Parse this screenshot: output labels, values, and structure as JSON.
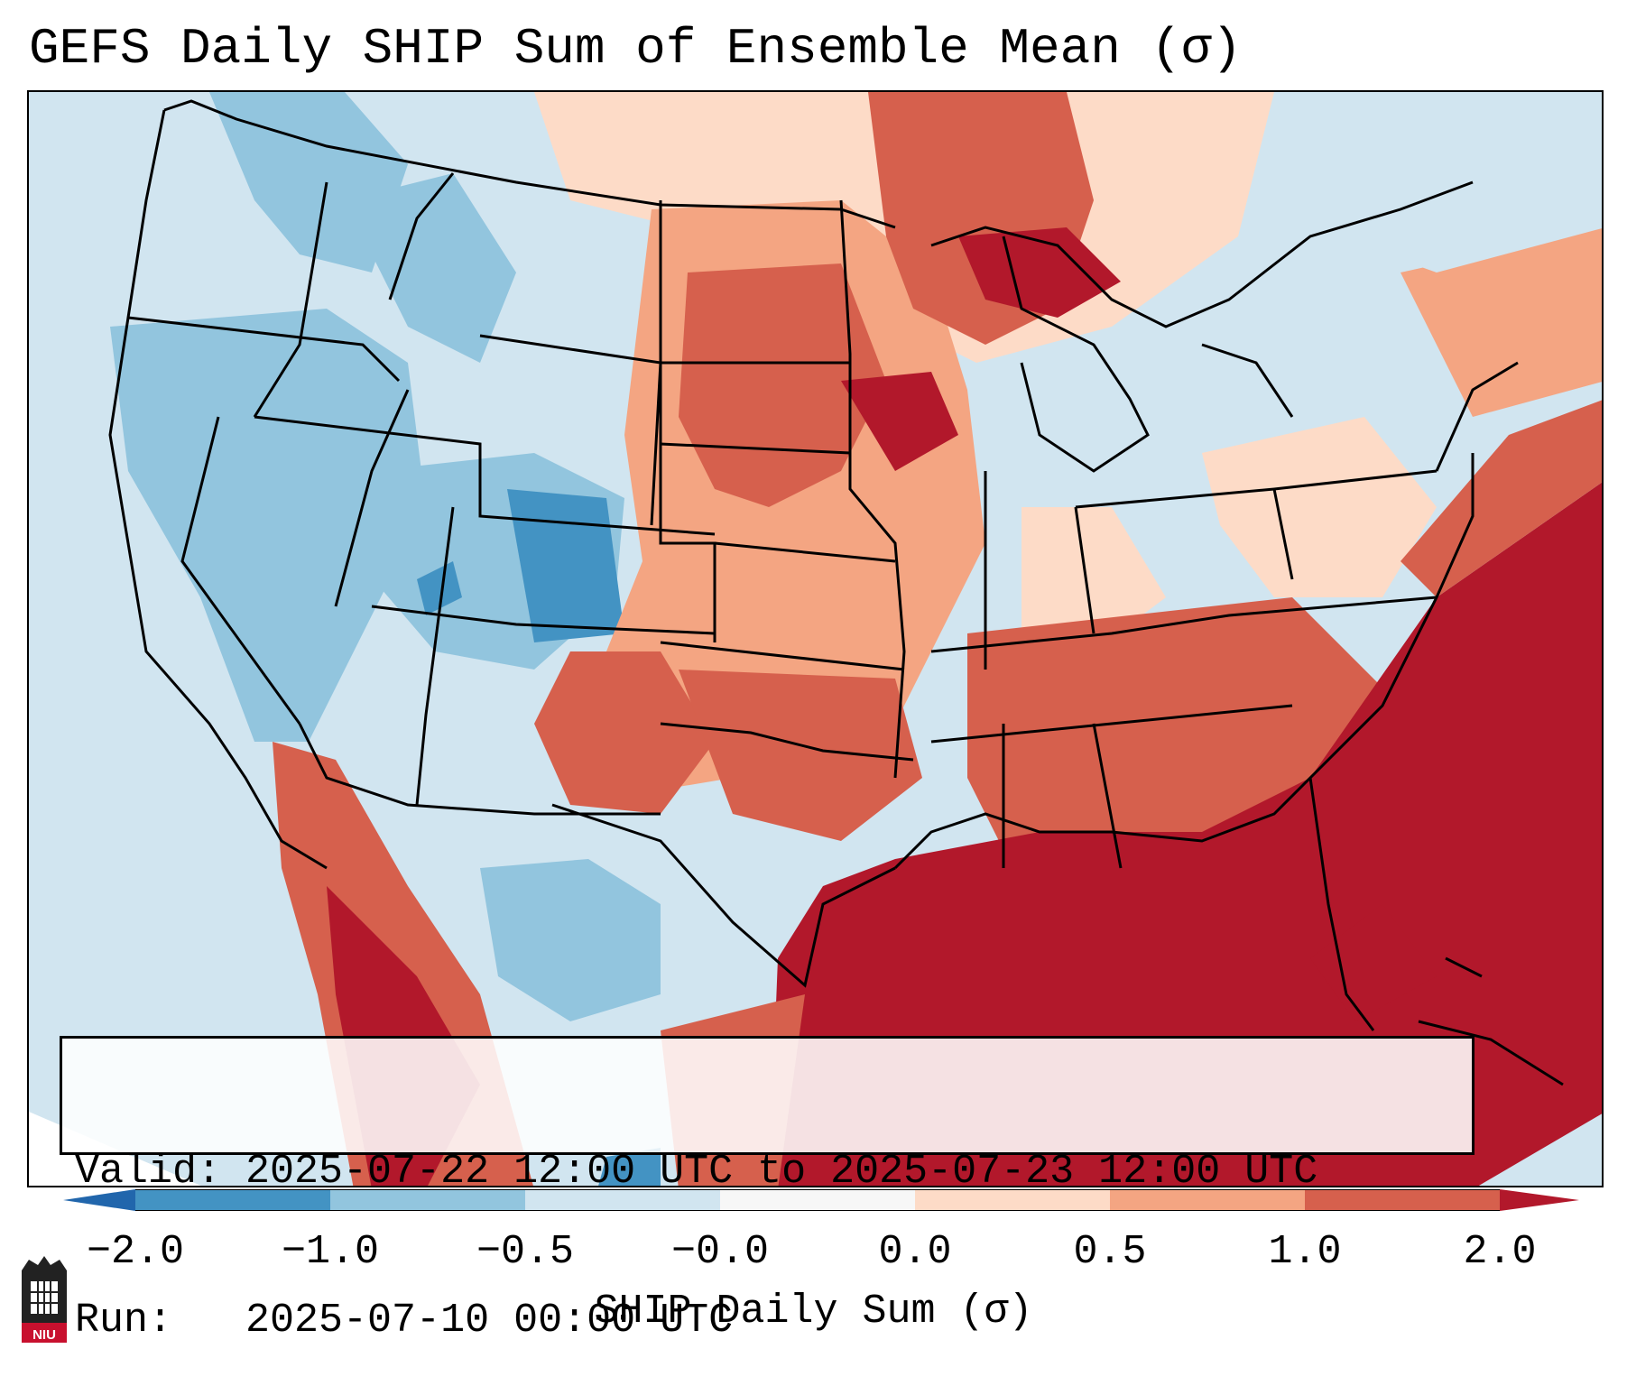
{
  "title": "GEFS Daily SHIP Sum of Ensemble Mean (σ)",
  "map": {
    "region": "Contiguous United States",
    "variable": "SHIP daily sum anomaly",
    "features": [
      "state boundaries",
      "coastlines",
      "Great Lakes",
      "Gulf of Mexico"
    ],
    "high_anomaly_areas": [
      "Gulf of Mexico",
      "Western Atlantic",
      "Lake Superior",
      "Upper Midwest",
      "Northern Mexico"
    ],
    "low_anomaly_areas": [
      "Great Basin",
      "Colorado",
      "Utah",
      "Pacific Northwest"
    ]
  },
  "info": {
    "valid_line": "Valid: 2025-07-22 12:00 UTC to 2025-07-23 12:00 UTC",
    "run_line": "Run:   2025-07-10 00:00 UTC"
  },
  "colorbar": {
    "label": "SHIP Daily Sum (σ)",
    "ticks": [
      "−2.0",
      "−1.0",
      "−0.5",
      "−0.0",
      "0.0",
      "0.5",
      "1.0",
      "2.0"
    ],
    "colors": [
      "#2166ac",
      "#4393c3",
      "#92c5de",
      "#d1e5f0",
      "#f7f7f7",
      "#fddbc7",
      "#f4a582",
      "#d6604d",
      "#b2182b"
    ],
    "extend": "both"
  },
  "logo": {
    "text": "NIU",
    "color": "#c8102e"
  }
}
